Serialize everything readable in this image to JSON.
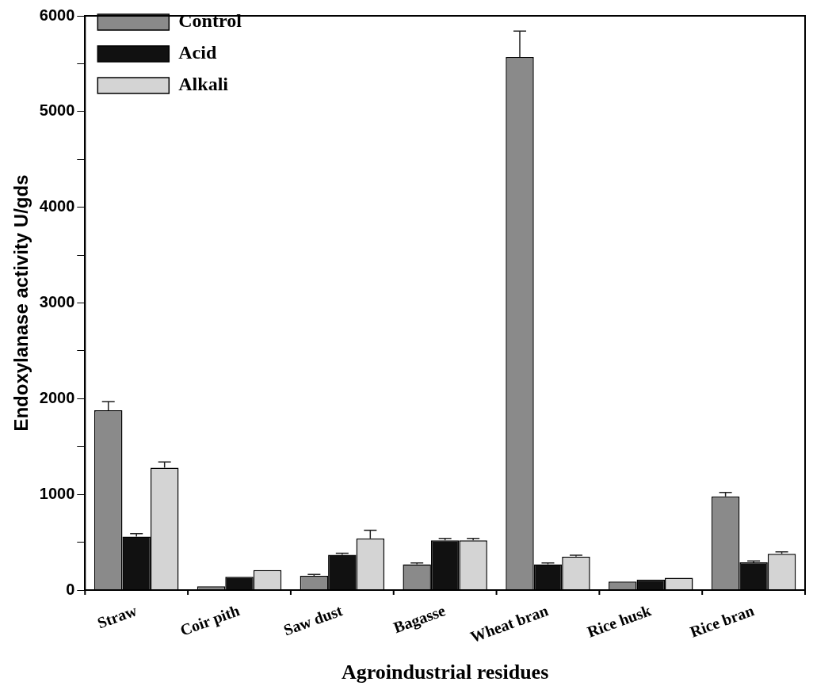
{
  "chart_data": {
    "type": "bar",
    "xlabel": "Agroindustrial residues",
    "ylabel": "Endoxylanase activity U/gds",
    "categories": [
      "Straw",
      "Coir pith",
      "Saw dust",
      "Bagasse",
      "Wheat bran",
      "Rice husk",
      "Rice bran"
    ],
    "series": [
      {
        "name": "Control",
        "color": "#8a8a8a",
        "values": [
          1880,
          40,
          150,
          270,
          5570,
          90,
          980
        ],
        "errors": [
          90,
          null,
          15,
          15,
          270,
          null,
          40
        ]
      },
      {
        "name": "Acid",
        "color": "#111111",
        "values": [
          560,
          140,
          370,
          520,
          270,
          110,
          290
        ],
        "errors": [
          30,
          null,
          15,
          20,
          15,
          null,
          15
        ]
      },
      {
        "name": "Alkali",
        "color": "#d4d4d4",
        "values": [
          1280,
          210,
          540,
          520,
          350,
          130,
          380
        ],
        "errors": [
          60,
          null,
          85,
          20,
          15,
          null,
          20
        ]
      }
    ],
    "ylim": [
      0,
      6000
    ],
    "yticks": [
      0,
      {
        "value": 500,
        "label": null
      },
      1000,
      {
        "value": 1500,
        "label": null
      },
      2000,
      {
        "value": 2500,
        "label": null
      },
      3000,
      {
        "value": 3500,
        "label": null
      },
      4000,
      {
        "value": 4500,
        "label": null
      },
      5000,
      {
        "value": 5500,
        "label": null
      },
      6000
    ],
    "legend": "top left",
    "grid": false
  }
}
